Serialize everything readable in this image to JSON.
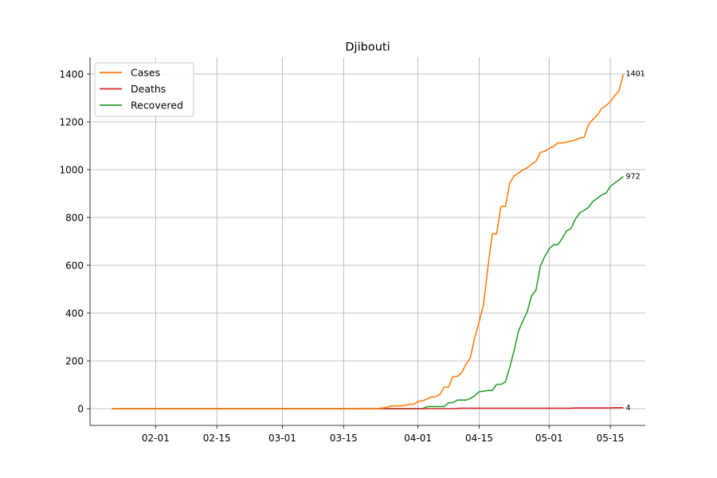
{
  "chart_data": {
    "type": "line",
    "title": "Djibouti",
    "xlabel": "",
    "ylabel": "",
    "x_range": [
      "2020-01-22",
      "2020-05-18"
    ],
    "xlim": [
      "2020-01-17",
      "2020-05-23"
    ],
    "ylim": [
      -70,
      1470
    ],
    "x_ticks": [
      "02-01",
      "02-15",
      "03-01",
      "03-15",
      "04-01",
      "04-15",
      "05-01",
      "05-15"
    ],
    "x_tick_dates": [
      "2020-02-01",
      "2020-02-15",
      "2020-03-01",
      "2020-03-15",
      "2020-04-01",
      "2020-04-15",
      "2020-05-01",
      "2020-05-15"
    ],
    "y_ticks": [
      0,
      200,
      400,
      600,
      800,
      1000,
      1200,
      1400
    ],
    "grid": true,
    "legend_position": "top-left",
    "series": [
      {
        "name": "Cases",
        "color": "#ff7f0e",
        "end_label": "1401",
        "points": [
          [
            "2020-01-22",
            0
          ],
          [
            "2020-03-17",
            0
          ],
          [
            "2020-03-18",
            1
          ],
          [
            "2020-03-23",
            1
          ],
          [
            "2020-03-24",
            3
          ],
          [
            "2020-03-26",
            11
          ],
          [
            "2020-03-28",
            12
          ],
          [
            "2020-03-29",
            14
          ],
          [
            "2020-03-30",
            18
          ],
          [
            "2020-03-31",
            18
          ],
          [
            "2020-04-01",
            30
          ],
          [
            "2020-04-02",
            33
          ],
          [
            "2020-04-03",
            40
          ],
          [
            "2020-04-04",
            49
          ],
          [
            "2020-04-05",
            50
          ],
          [
            "2020-04-06",
            59
          ],
          [
            "2020-04-07",
            90
          ],
          [
            "2020-04-08",
            90
          ],
          [
            "2020-04-09",
            135
          ],
          [
            "2020-04-10",
            135
          ],
          [
            "2020-04-11",
            150
          ],
          [
            "2020-04-12",
            187
          ],
          [
            "2020-04-13",
            214
          ],
          [
            "2020-04-14",
            298
          ],
          [
            "2020-04-15",
            363
          ],
          [
            "2020-04-16",
            435
          ],
          [
            "2020-04-17",
            591
          ],
          [
            "2020-04-18",
            732
          ],
          [
            "2020-04-19",
            732
          ],
          [
            "2020-04-20",
            846
          ],
          [
            "2020-04-21",
            846
          ],
          [
            "2020-04-22",
            945
          ],
          [
            "2020-04-23",
            974
          ],
          [
            "2020-04-24",
            986
          ],
          [
            "2020-04-25",
            999
          ],
          [
            "2020-04-26",
            1008
          ],
          [
            "2020-04-27",
            1023
          ],
          [
            "2020-04-28",
            1035
          ],
          [
            "2020-04-29",
            1072
          ],
          [
            "2020-04-30",
            1077
          ],
          [
            "2020-05-01",
            1089
          ],
          [
            "2020-05-02",
            1097
          ],
          [
            "2020-05-03",
            1112
          ],
          [
            "2020-05-04",
            1112
          ],
          [
            "2020-05-05",
            1116
          ],
          [
            "2020-05-06",
            1120
          ],
          [
            "2020-05-07",
            1124
          ],
          [
            "2020-05-08",
            1133
          ],
          [
            "2020-05-09",
            1135
          ],
          [
            "2020-05-10",
            1189
          ],
          [
            "2020-05-11",
            1210
          ],
          [
            "2020-05-12",
            1227
          ],
          [
            "2020-05-13",
            1256
          ],
          [
            "2020-05-14",
            1268
          ],
          [
            "2020-05-15",
            1284
          ],
          [
            "2020-05-16",
            1309
          ],
          [
            "2020-05-17",
            1331
          ],
          [
            "2020-05-18",
            1401
          ]
        ]
      },
      {
        "name": "Deaths",
        "color": "#d62728",
        "end_label": "4",
        "points": [
          [
            "2020-01-22",
            0
          ],
          [
            "2020-04-09",
            0
          ],
          [
            "2020-04-10",
            1
          ],
          [
            "2020-04-11",
            2
          ],
          [
            "2020-05-06",
            2
          ],
          [
            "2020-05-07",
            3
          ],
          [
            "2020-05-15",
            3
          ],
          [
            "2020-05-16",
            4
          ],
          [
            "2020-05-18",
            4
          ]
        ]
      },
      {
        "name": "Recovered",
        "color": "#2ca02c",
        "end_label": "972",
        "points": [
          [
            "2020-01-22",
            0
          ],
          [
            "2020-04-02",
            0
          ],
          [
            "2020-04-03",
            8
          ],
          [
            "2020-04-04",
            9
          ],
          [
            "2020-04-05",
            9
          ],
          [
            "2020-04-07",
            9
          ],
          [
            "2020-04-08",
            25
          ],
          [
            "2020-04-09",
            25
          ],
          [
            "2020-04-10",
            36
          ],
          [
            "2020-04-11",
            36
          ],
          [
            "2020-04-12",
            36
          ],
          [
            "2020-04-13",
            43
          ],
          [
            "2020-04-14",
            54
          ],
          [
            "2020-04-15",
            71
          ],
          [
            "2020-04-16",
            73
          ],
          [
            "2020-04-17",
            76
          ],
          [
            "2020-04-18",
            76
          ],
          [
            "2020-04-19",
            102
          ],
          [
            "2020-04-20",
            102
          ],
          [
            "2020-04-21",
            112
          ],
          [
            "2020-04-22",
            173
          ],
          [
            "2020-04-23",
            244
          ],
          [
            "2020-04-24",
            325
          ],
          [
            "2020-04-25",
            367
          ],
          [
            "2020-04-26",
            406
          ],
          [
            "2020-04-27",
            473
          ],
          [
            "2020-04-28",
            496
          ],
          [
            "2020-04-29",
            597
          ],
          [
            "2020-04-30",
            637
          ],
          [
            "2020-05-01",
            668
          ],
          [
            "2020-05-02",
            686
          ],
          [
            "2020-05-03",
            686
          ],
          [
            "2020-05-04",
            713
          ],
          [
            "2020-05-05",
            744
          ],
          [
            "2020-05-06",
            754
          ],
          [
            "2020-05-07",
            793
          ],
          [
            "2020-05-08",
            819
          ],
          [
            "2020-05-09",
            830
          ],
          [
            "2020-05-10",
            842
          ],
          [
            "2020-05-11",
            867
          ],
          [
            "2020-05-12",
            880
          ],
          [
            "2020-05-13",
            894
          ],
          [
            "2020-05-14",
            902
          ],
          [
            "2020-05-15",
            930
          ],
          [
            "2020-05-16",
            944
          ],
          [
            "2020-05-17",
            958
          ],
          [
            "2020-05-18",
            972
          ]
        ]
      }
    ]
  }
}
